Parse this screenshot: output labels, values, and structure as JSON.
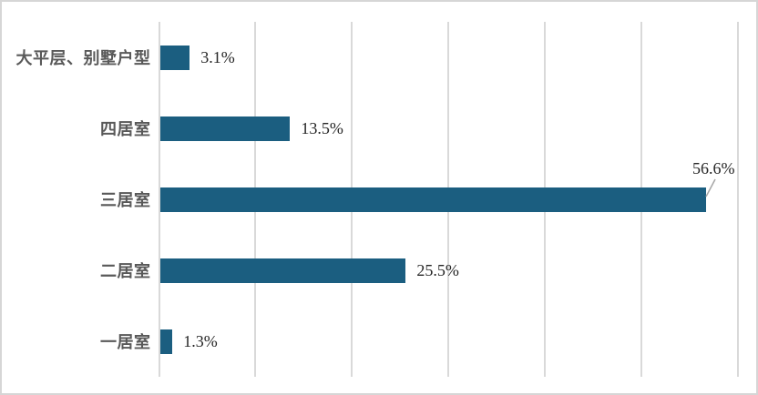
{
  "chart_data": {
    "type": "bar",
    "orientation": "horizontal",
    "title": "",
    "xlabel": "",
    "ylabel": "",
    "categories": [
      "大平层、别墅户型",
      "四居室",
      "三居室",
      "二居室",
      "一居室"
    ],
    "values": [
      3.1,
      13.5,
      56.6,
      25.5,
      1.3
    ],
    "value_labels": [
      "3.1%",
      "13.5%",
      "56.6%",
      "25.5%",
      "1.3%"
    ],
    "xlim": [
      0,
      60
    ],
    "gridline_step": 10,
    "grid": true,
    "legend": false,
    "axis_tick_labels_visible": false,
    "callout_category": "三居室"
  },
  "colors": {
    "bar": "#1b5e80",
    "grid": "#d9d9d9",
    "frame_border": "#d6d6d6",
    "category_label": "#595959",
    "value_label": "#262626",
    "leader_line": "#a6a6a6",
    "background": "#ffffff"
  }
}
